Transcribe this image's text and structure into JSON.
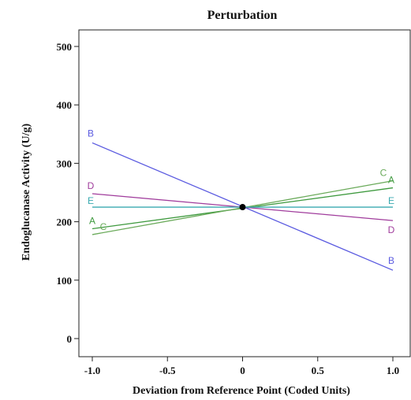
{
  "chart_data": {
    "type": "line",
    "title": "Perturbation",
    "xlabel": "Deviation from Reference Point (Coded Units)",
    "ylabel": "Endoglucanase Activity (U/g)",
    "xlim": [
      -1.1,
      1.1
    ],
    "ylim": [
      -30,
      510
    ],
    "xticks": [
      -1.0,
      -0.5,
      0,
      0.5,
      1.0
    ],
    "xtick_labels": [
      "-1.0",
      "-0.5",
      "0",
      "0.5",
      "1.0"
    ],
    "yticks": [
      0,
      100,
      200,
      300,
      400,
      500
    ],
    "ytick_labels": [
      "0",
      "100",
      "200",
      "300",
      "400",
      "500"
    ],
    "grid": false,
    "reference_point": {
      "x": 0,
      "y": 225
    },
    "series": [
      {
        "name": "A",
        "color": "#3f9a3f",
        "x": [
          -1,
          1
        ],
        "y": [
          188,
          258
        ]
      },
      {
        "name": "B",
        "color": "#5a5ae0",
        "x": [
          -1,
          1
        ],
        "y": [
          335,
          117
        ]
      },
      {
        "name": "C",
        "color": "#6aaa5a",
        "x": [
          -1,
          1
        ],
        "y": [
          178,
          270
        ]
      },
      {
        "name": "D",
        "color": "#a03c9c",
        "x": [
          -1,
          1
        ],
        "y": [
          248,
          202
        ]
      },
      {
        "name": "E",
        "color": "#3aaab0",
        "x": [
          -1,
          1
        ],
        "y": [
          225,
          225
        ]
      }
    ]
  }
}
